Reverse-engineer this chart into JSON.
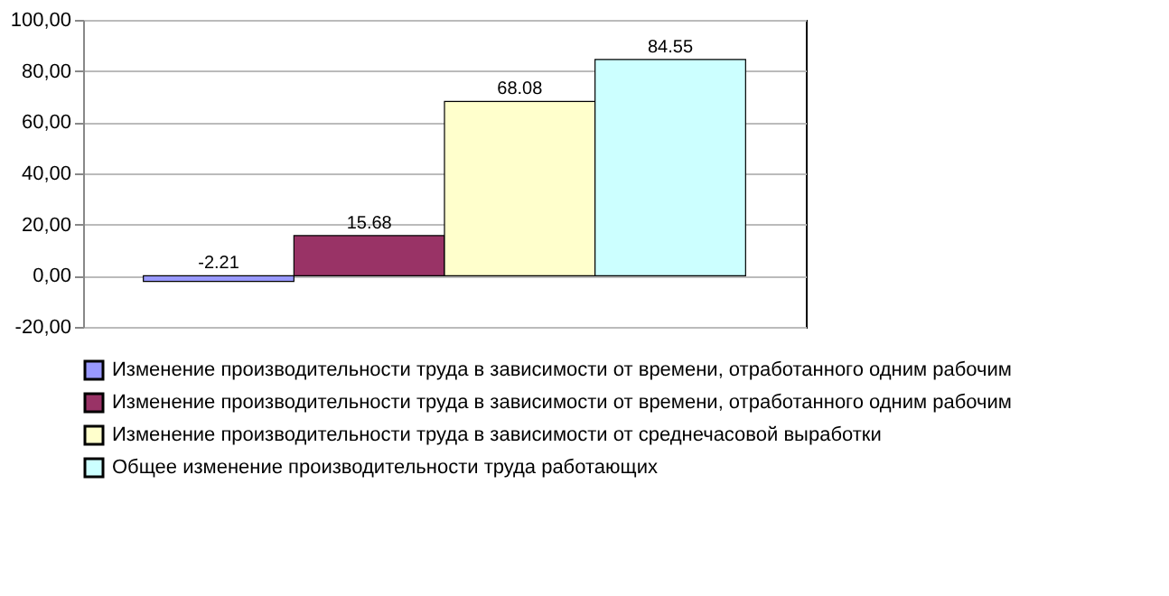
{
  "chart_data": {
    "type": "bar",
    "categories": [
      null
    ],
    "series": [
      {
        "name": "Изменение производительности труда в зависимости от времени, отработанного одним рабочим",
        "color": "#9999ff",
        "values": [
          -2.21
        ]
      },
      {
        "name": "Изменение производительности труда в зависимости от времени, отработанного одним рабочим",
        "color": "#993366",
        "values": [
          15.68
        ]
      },
      {
        "name": "Изменение производительности труда в зависимости от среднечасовой выработки",
        "color": "#ffffcc",
        "values": [
          68.08
        ]
      },
      {
        "name": "Общее изменение производительности труда работающих",
        "color": "#ccffff",
        "values": [
          84.55
        ]
      }
    ],
    "ylim": [
      -20,
      100
    ],
    "yticks": [
      {
        "value": -20,
        "label": "-20,00"
      },
      {
        "value": 0,
        "label": "0,00"
      },
      {
        "value": 20,
        "label": "20,00"
      },
      {
        "value": 40,
        "label": "40,00"
      },
      {
        "value": 60,
        "label": "60,00"
      },
      {
        "value": 80,
        "label": "80,00"
      },
      {
        "value": 100,
        "label": "100,00"
      }
    ],
    "grid": "y",
    "legend": "bottom",
    "data_labels": true
  }
}
